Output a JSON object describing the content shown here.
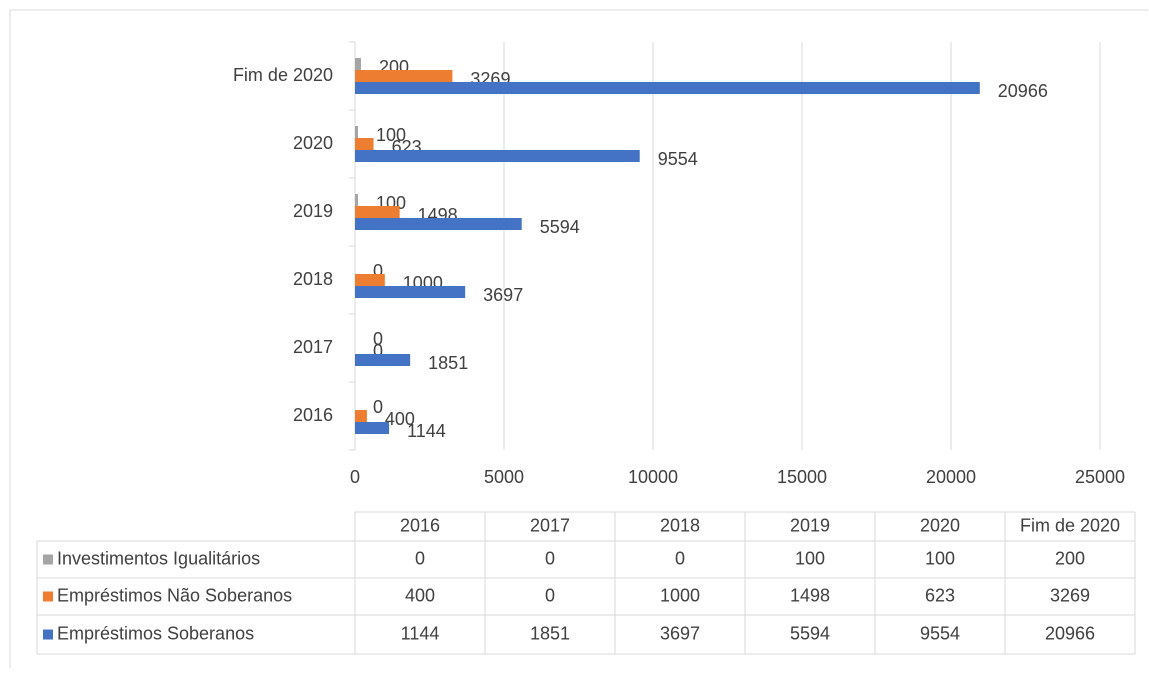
{
  "chart_data": {
    "type": "bar",
    "orientation": "horizontal",
    "categories": [
      "2016",
      "2017",
      "2018",
      "2019",
      "2020",
      "Fim de 2020"
    ],
    "series": [
      {
        "name": "Investimentos Igualitários",
        "color": "#a5a5a5",
        "values": [
          0,
          0,
          0,
          100,
          100,
          200
        ]
      },
      {
        "name": "Empréstimos Não Soberanos",
        "color": "#ed7d31",
        "values": [
          400,
          0,
          1000,
          1498,
          623,
          3269
        ]
      },
      {
        "name": "Empréstimos Soberanos",
        "color": "#4472c4",
        "values": [
          1144,
          1851,
          3697,
          5594,
          9554,
          20966
        ]
      }
    ],
    "xlim": [
      0,
      25000
    ],
    "xticks": [
      0,
      5000,
      10000,
      15000,
      20000,
      25000
    ],
    "grid": true,
    "data_table": true
  }
}
